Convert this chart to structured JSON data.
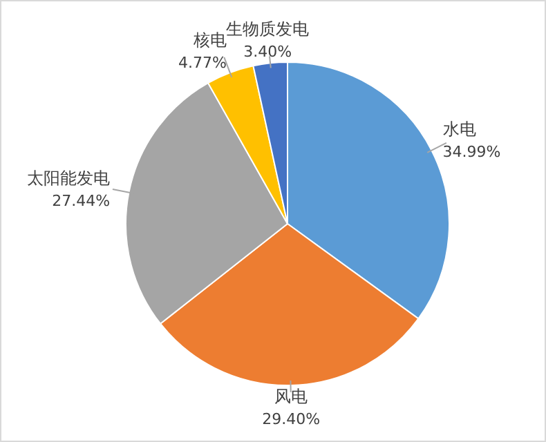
{
  "chart_data": {
    "type": "pie",
    "categories": [
      "水电",
      "风电",
      "太阳能发电",
      "核电",
      "生物质发电"
    ],
    "values": [
      34.99,
      29.4,
      27.44,
      4.77,
      3.4
    ],
    "colors": [
      "#5b9bd5",
      "#ed7d31",
      "#a5a5a5",
      "#ffc000",
      "#4472c4"
    ],
    "value_labels": [
      "34.99%",
      "29.40%",
      "27.44%",
      "4.77%",
      "3.40%"
    ],
    "legend": false
  }
}
